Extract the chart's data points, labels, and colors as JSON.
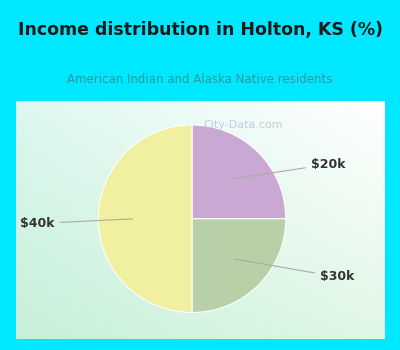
{
  "title": "Income distribution in Holton, KS (%)",
  "subtitle": "American Indian and Alaska Native residents",
  "title_color": "#1a1a1a",
  "subtitle_color": "#2a9a9a",
  "title_bg_color": "#00e8ff",
  "chart_bg_color_topleft": "#daf5f0",
  "chart_bg_color_bottomleft": "#c8f0d8",
  "chart_bg_color_topright": "#ffffff",
  "slices": [
    {
      "label": "$20k",
      "value": 25,
      "color": "#c9a8d4"
    },
    {
      "label": "$30k",
      "value": 25,
      "color": "#b8d0a8"
    },
    {
      "label": "$40k",
      "value": 50,
      "color": "#f0f0a0"
    }
  ],
  "label_color": "#333333",
  "line_color": "#aaaaaa",
  "watermark": "City-Data.com",
  "watermark_color": "#b0c8d8",
  "border_color": "#00e8ff",
  "border_width": 10
}
